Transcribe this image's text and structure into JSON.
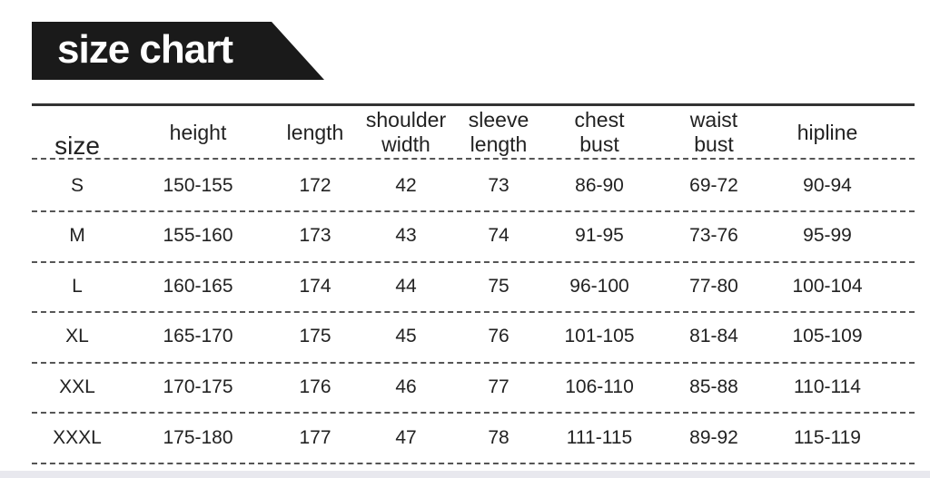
{
  "title": "size chart",
  "columns": [
    "size",
    "height",
    "length",
    "shoulder width",
    "sleeve length",
    "chest bust",
    "waist bust",
    "hipline"
  ],
  "rows": [
    [
      "S",
      "150-155",
      "172",
      "42",
      "73",
      "86-90",
      "69-72",
      "90-94"
    ],
    [
      "M",
      "155-160",
      "173",
      "43",
      "74",
      "91-95",
      "73-76",
      "95-99"
    ],
    [
      "L",
      "160-165",
      "174",
      "44",
      "75",
      "96-100",
      "77-80",
      "100-104"
    ],
    [
      "XL",
      "165-170",
      "175",
      "45",
      "76",
      "101-105",
      "81-84",
      "105-109"
    ],
    [
      "XXL",
      "170-175",
      "176",
      "46",
      "77",
      "106-110",
      "85-88",
      "110-114"
    ],
    [
      "XXXL",
      "175-180",
      "177",
      "47",
      "78",
      "111-115",
      "89-92",
      "115-119"
    ]
  ]
}
